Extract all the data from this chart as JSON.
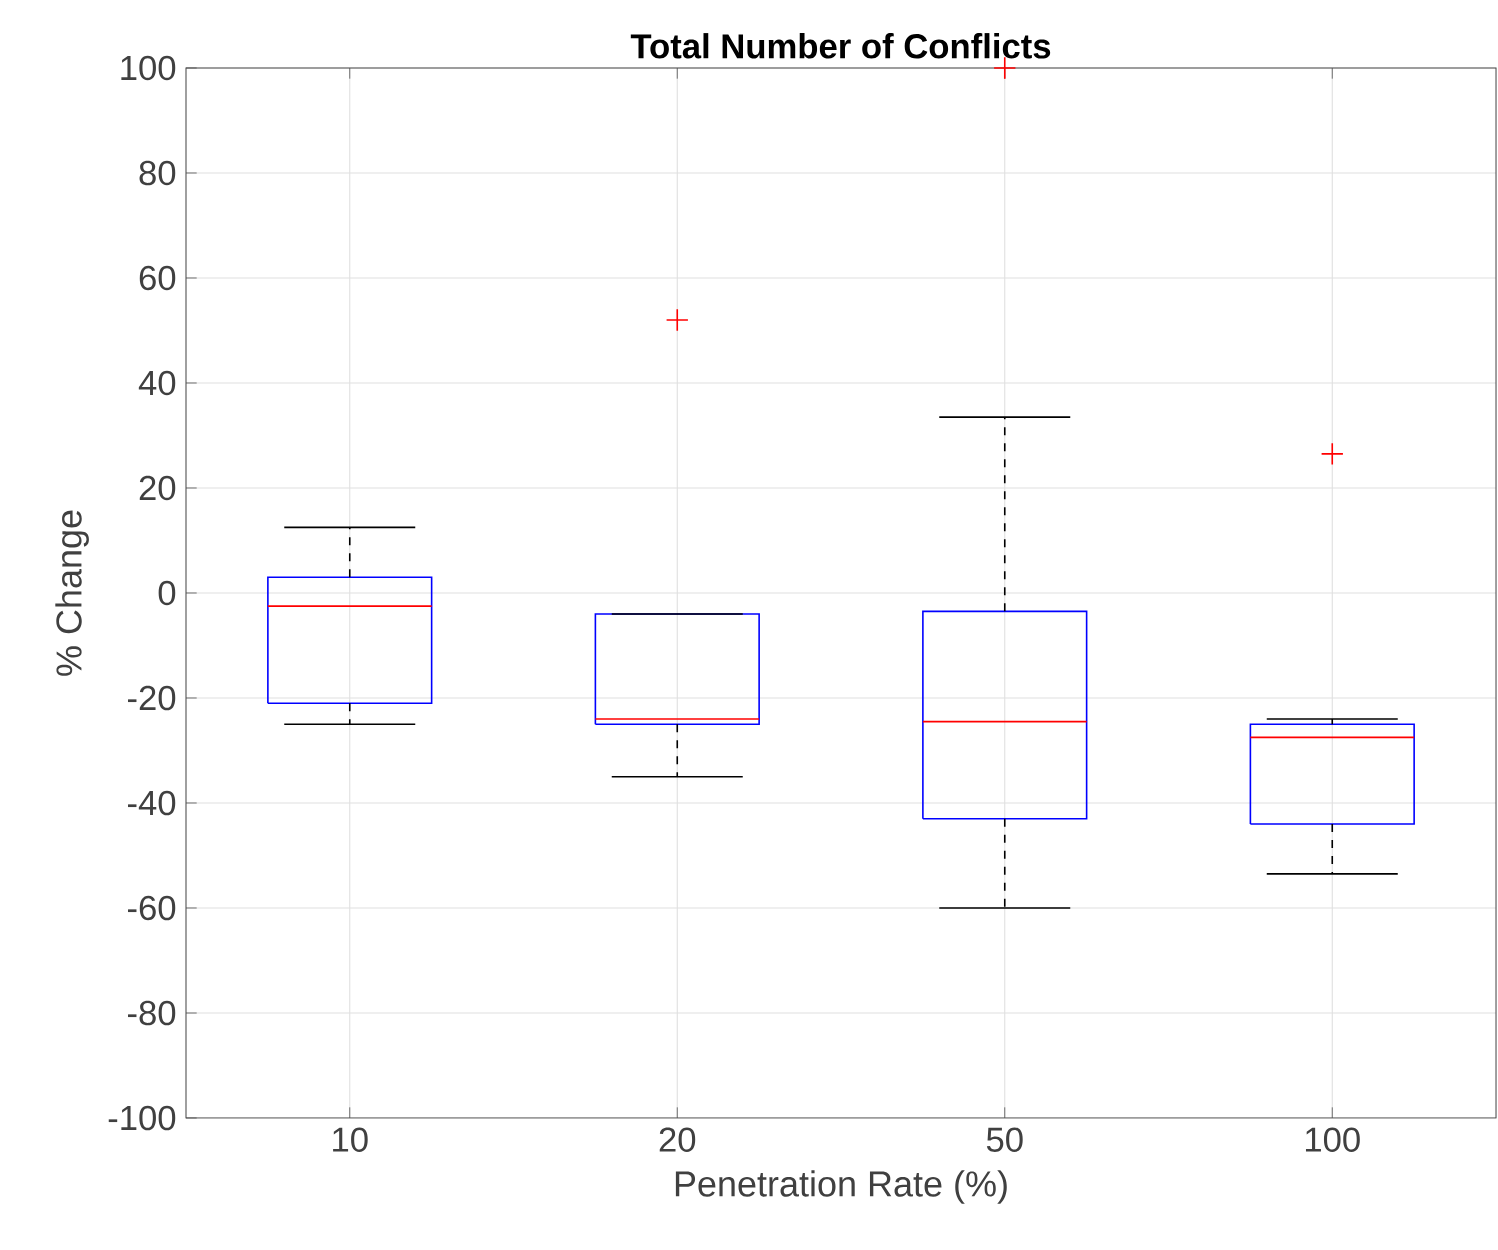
{
  "chart_data": {
    "type": "box",
    "title": "Total Number of Conflicts",
    "xlabel": "Penetration Rate (%)",
    "ylabel": "% Change",
    "categories": [
      "10",
      "20",
      "50",
      "100"
    ],
    "series": [
      {
        "color": "#0000ff",
        "boxes": [
          {
            "low": -25,
            "q1": -21,
            "median": -2.5,
            "q3": 3,
            "high": 12.5
          },
          {
            "low": -35,
            "q1": -25,
            "median": -24,
            "q3": -4,
            "high": -4,
            "outliers": [
              52
            ]
          },
          {
            "low": -60,
            "q1": -43,
            "median": -24.5,
            "q3": -3.5,
            "high": 33.5,
            "outliers": [
              100
            ]
          },
          {
            "low": -53.5,
            "q1": -44,
            "median": -27.5,
            "q3": -25,
            "high": -24,
            "outliers": [
              26.5
            ]
          }
        ]
      }
    ],
    "ylim": [
      -100,
      100
    ],
    "yticks": [
      -100,
      -80,
      -60,
      -40,
      -20,
      0,
      20,
      40,
      60,
      80,
      100
    ],
    "grid": true
  }
}
